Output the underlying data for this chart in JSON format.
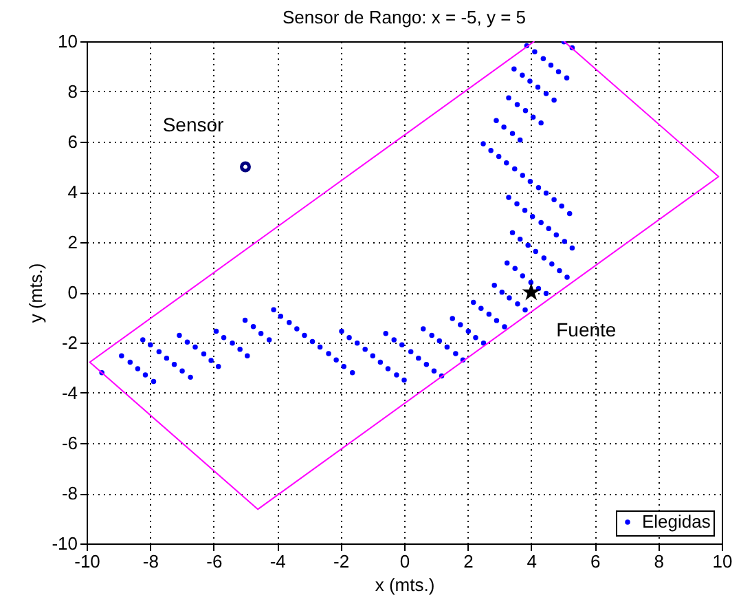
{
  "chart_data": {
    "type": "scatter",
    "title": "Sensor  de Rango: x = -5, y = 5",
    "xlabel": "x (mts.)",
    "ylabel": "y (mts.)",
    "xlim": [
      -10,
      10
    ],
    "xticks": [
      -10,
      -8,
      -6,
      -4,
      -2,
      0,
      2,
      4,
      6,
      8,
      10
    ],
    "ylim": [
      -10,
      10
    ],
    "yticks": [
      -10,
      -8,
      -6,
      -4,
      -2,
      0,
      2,
      4,
      6,
      8,
      10
    ],
    "grid": true,
    "legend": "bottom right",
    "annotations": [
      {
        "text": "Sensor",
        "x": -5,
        "y": 5
      },
      {
        "text": "Fuente",
        "x": 4,
        "y": 0
      }
    ],
    "series": [
      {
        "name": "Elegidas",
        "marker": "circle",
        "color": "#0000ff",
        "x": [
          -9.52,
          -8.9,
          -8.63,
          -8.39,
          -8.15,
          -7.89,
          -8.23,
          -7.99,
          -7.72,
          -7.48,
          -7.24,
          -6.99,
          -6.73,
          -7.08,
          -6.83,
          -6.58,
          -6.31,
          -6.08,
          -5.85,
          -5.92,
          -5.68,
          -5.41,
          -5.17,
          -4.94,
          -5.01,
          -4.75,
          -4.51,
          -4.25,
          -4.11,
          -3.89,
          -3.62,
          -3.38,
          -3.14,
          -2.89,
          -2.65,
          -2.38,
          -2.14,
          -1.9,
          -1.63,
          -1.97,
          -1.73,
          -1.48,
          -1.23,
          -0.99,
          -0.75,
          -0.51,
          -0.24,
          0.0,
          -0.58,
          -0.32,
          -0.07,
          0.21,
          0.45,
          0.7,
          0.94,
          1.18,
          0.6,
          0.87,
          1.11,
          1.35,
          1.62,
          1.85,
          1.52,
          1.77,
          2.02,
          2.25,
          2.5,
          2.18,
          2.42,
          2.67,
          2.91,
          3.16,
          2.84,
          3.08,
          3.31,
          3.57,
          3.81,
          3.24,
          3.49,
          3.73,
          3.99,
          4.23,
          4.47,
          3.41,
          3.65,
          3.9,
          4.14,
          4.4,
          4.65,
          4.89,
          5.13,
          3.29,
          3.55,
          3.8,
          4.04,
          4.31,
          4.55,
          4.79,
          5.05,
          5.29,
          2.49,
          2.73,
          2.98,
          3.22,
          3.48,
          3.73,
          3.97,
          4.23,
          4.47,
          4.72,
          4.96,
          5.21,
          2.9,
          3.14,
          3.41,
          3.65,
          3.29,
          3.56,
          3.82,
          4.06,
          4.31,
          3.46,
          3.72,
          3.96,
          4.21,
          4.47,
          4.72,
          3.86,
          4.11,
          4.38,
          4.62,
          4.86,
          5.12,
          5.03,
          5.29
        ],
        "values": [
          -3.2,
          -2.53,
          -2.78,
          -3.04,
          -3.29,
          -3.55,
          -1.89,
          -2.09,
          -2.36,
          -2.62,
          -2.87,
          -3.13,
          -3.38,
          -1.71,
          -1.98,
          -2.18,
          -2.45,
          -2.71,
          -2.95,
          -1.55,
          -1.8,
          -2.02,
          -2.27,
          -2.53,
          -1.11,
          -1.36,
          -1.64,
          -1.89,
          -0.69,
          -0.95,
          -1.2,
          -1.45,
          -1.71,
          -1.96,
          -2.18,
          -2.44,
          -2.69,
          -2.95,
          -3.2,
          -1.55,
          -1.8,
          -2.02,
          -2.27,
          -2.53,
          -2.78,
          -3.04,
          -3.29,
          -3.49,
          -1.64,
          -1.89,
          -2.09,
          -2.36,
          -2.62,
          -2.87,
          -3.13,
          -3.33,
          -1.45,
          -1.71,
          -1.93,
          -2.18,
          -2.44,
          -2.69,
          -1.04,
          -1.29,
          -1.55,
          -1.8,
          -2.02,
          -0.4,
          -0.64,
          -0.87,
          -1.12,
          -1.37,
          0.28,
          0.01,
          -0.22,
          -0.46,
          -0.7,
          1.17,
          0.95,
          0.66,
          0.4,
          0.15,
          -0.04,
          2.38,
          2.12,
          1.88,
          1.63,
          1.37,
          1.13,
          0.86,
          0.6,
          3.78,
          3.53,
          3.27,
          3.02,
          2.78,
          2.54,
          2.29,
          2.03,
          1.77,
          5.92,
          5.65,
          5.41,
          5.16,
          4.92,
          4.66,
          4.42,
          4.17,
          3.95,
          3.69,
          3.44,
          3.14,
          6.84,
          6.58,
          6.33,
          6.07,
          7.75,
          7.48,
          7.24,
          6.98,
          6.75,
          8.9,
          8.65,
          8.41,
          8.17,
          7.92,
          7.66,
          9.82,
          9.58,
          9.31,
          9.05,
          8.79,
          8.54,
          9.98,
          9.74
        ]
      },
      {
        "type": "line",
        "color": "#ff00ff",
        "line_style": "solid",
        "x": [
          4.1,
          -9.9,
          -4.61,
          9.9,
          5.03
        ],
        "values": [
          10,
          -2.78,
          -8.64,
          4.61,
          10
        ]
      },
      {
        "marker": "circle",
        "color": "#000080",
        "x": [
          -5
        ],
        "values": [
          5
        ]
      },
      {
        "marker": "star",
        "color": "#000000",
        "x": [
          4
        ],
        "values": [
          0
        ]
      }
    ]
  }
}
